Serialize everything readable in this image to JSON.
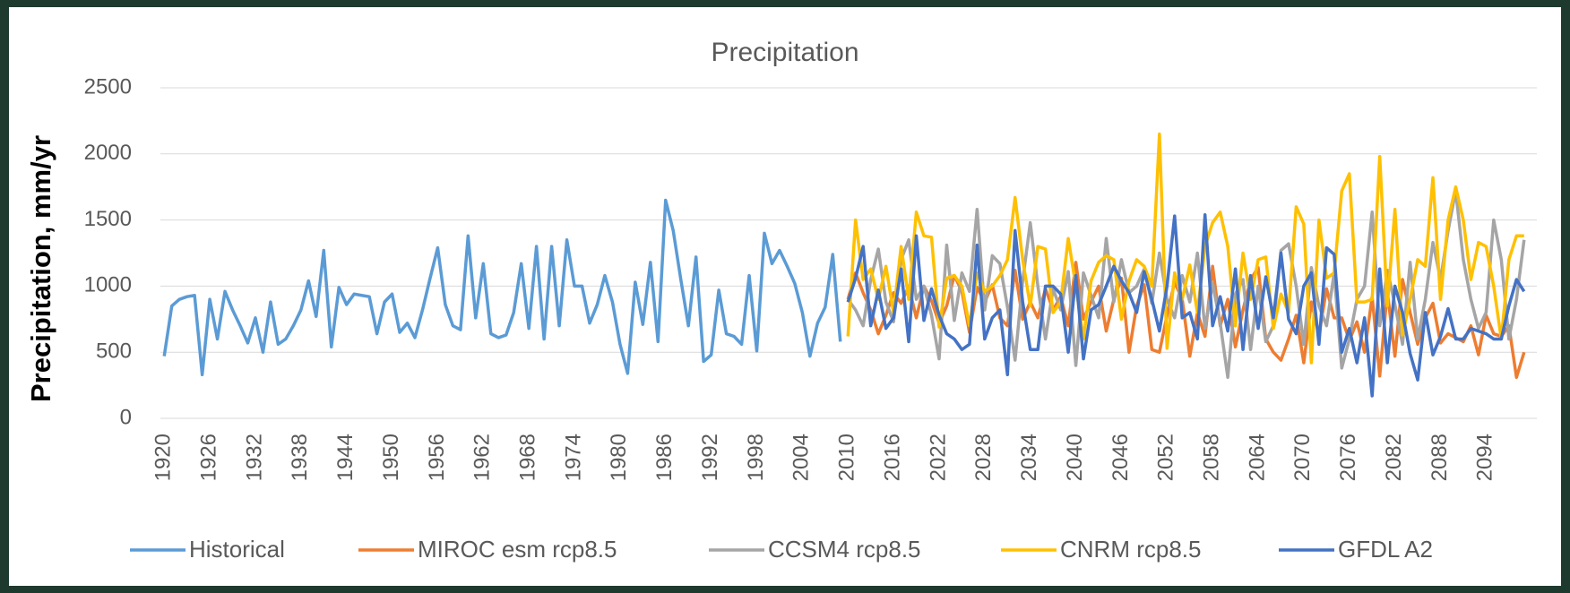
{
  "chart_data": {
    "type": "line",
    "title": "Precipitation",
    "y_label": "Precipitation, mm/yr",
    "categories": [
      "1920",
      null,
      null,
      null,
      null,
      null,
      "1926",
      null,
      null,
      null,
      null,
      null,
      "1932",
      null,
      null,
      null,
      null,
      null,
      "1938",
      null,
      null,
      null,
      null,
      null,
      "1944",
      null,
      null,
      null,
      null,
      null,
      "1950",
      null,
      null,
      null,
      null,
      null,
      "1956",
      null,
      null,
      null,
      null,
      null,
      "1962",
      null,
      null,
      null,
      null,
      null,
      "1968",
      null,
      null,
      null,
      null,
      null,
      "1974",
      null,
      null,
      null,
      null,
      null,
      "1980",
      null,
      null,
      null,
      null,
      null,
      "1986",
      null,
      null,
      null,
      null,
      null,
      "1992",
      null,
      null,
      null,
      null,
      null,
      "1998",
      null,
      null,
      null,
      null,
      null,
      "2004",
      null,
      null,
      null,
      null,
      null,
      "2010",
      null,
      null,
      null,
      null,
      null,
      "2016",
      null,
      null,
      null,
      null,
      null,
      "2022",
      null,
      null,
      null,
      null,
      null,
      "2028",
      null,
      null,
      null,
      null,
      null,
      "2034",
      null,
      null,
      null,
      null,
      null,
      "2040",
      null,
      null,
      null,
      null,
      null,
      "2046",
      null,
      null,
      null,
      null,
      null,
      "2052",
      null,
      null,
      null,
      null,
      null,
      "2058",
      null,
      null,
      null,
      null,
      null,
      "2064",
      null,
      null,
      null,
      null,
      null,
      "2070",
      null,
      null,
      null,
      null,
      null,
      "2076",
      null,
      null,
      null,
      null,
      null,
      "2082",
      null,
      null,
      null,
      null,
      null,
      "2088",
      null,
      null,
      null,
      null,
      null,
      "2094",
      null,
      null,
      null,
      null,
      null
    ],
    "series": [
      {
        "name": "Historical",
        "color": "#5b9bd5",
        "values": [
          470,
          850,
          900,
          920,
          930,
          330,
          900,
          600,
          960,
          820,
          700,
          570,
          760,
          500,
          880,
          560,
          600,
          700,
          820,
          1040,
          770,
          1270,
          540,
          990,
          860,
          940,
          930,
          920,
          640,
          880,
          940,
          650,
          720,
          610,
          820,
          1060,
          1290,
          860,
          700,
          670,
          1380,
          760,
          1170,
          640,
          610,
          630,
          800,
          1170,
          680,
          1300,
          600,
          1300,
          700,
          1350,
          1000,
          1000,
          720,
          860,
          1080,
          880,
          560,
          340,
          1030,
          710,
          1180,
          580,
          1650,
          1420,
          1050,
          700,
          1220,
          430,
          480,
          970,
          640,
          620,
          560,
          1080,
          510,
          1400,
          1170,
          1270,
          1150,
          1020,
          800,
          470,
          720,
          840,
          1240,
          580,
          null,
          null,
          null,
          null,
          null,
          null,
          null,
          null,
          null,
          null,
          null,
          null,
          null,
          null,
          null,
          null,
          null,
          null,
          null,
          null,
          null,
          null,
          null,
          null,
          null,
          null,
          null,
          null,
          null,
          null,
          null,
          null,
          null,
          null,
          null,
          null,
          null,
          null,
          null,
          null,
          null,
          null,
          null,
          null,
          null,
          null,
          null,
          null,
          null,
          null,
          null,
          null,
          null,
          null,
          null,
          null,
          null,
          null,
          null,
          null,
          null,
          null,
          null,
          null,
          null,
          null,
          null,
          null,
          null,
          null,
          null,
          null,
          null,
          null,
          null,
          null,
          null,
          null,
          null,
          null,
          null,
          null,
          null,
          null,
          null,
          null,
          null,
          null,
          null,
          null
        ]
      },
      {
        "name": "MIROC esm rcp8.5",
        "color": "#ed7d31",
        "values": [
          null,
          null,
          null,
          null,
          null,
          null,
          null,
          null,
          null,
          null,
          null,
          null,
          null,
          null,
          null,
          null,
          null,
          null,
          null,
          null,
          null,
          null,
          null,
          null,
          null,
          null,
          null,
          null,
          null,
          null,
          null,
          null,
          null,
          null,
          null,
          null,
          null,
          null,
          null,
          null,
          null,
          null,
          null,
          null,
          null,
          null,
          null,
          null,
          null,
          null,
          null,
          null,
          null,
          null,
          null,
          null,
          null,
          null,
          null,
          null,
          null,
          null,
          null,
          null,
          null,
          null,
          null,
          null,
          null,
          null,
          null,
          null,
          null,
          null,
          null,
          null,
          null,
          null,
          null,
          null,
          null,
          null,
          null,
          null,
          null,
          null,
          null,
          null,
          null,
          null,
          900,
          1100,
          950,
          820,
          640,
          780,
          950,
          870,
          1000,
          760,
          1000,
          890,
          720,
          850,
          1080,
          960,
          650,
          990,
          880,
          1010,
          760,
          700,
          1120,
          750,
          880,
          760,
          980,
          820,
          920,
          700,
          1180,
          750,
          880,
          1000,
          660,
          900,
          1060,
          500,
          850,
          1010,
          520,
          500,
          780,
          1030,
          900,
          470,
          800,
          620,
          1150,
          700,
          900,
          540,
          820,
          1050,
          1140,
          600,
          500,
          440,
          600,
          780,
          420,
          880,
          630,
          980,
          760,
          760,
          590,
          730,
          500,
          920,
          320,
          960,
          470,
          1050,
          800,
          560,
          760,
          870,
          570,
          640,
          610,
          580,
          700,
          480,
          780,
          640,
          620,
          700,
          310,
          500
        ]
      },
      {
        "name": "CCSM4 rcp8.5",
        "color": "#a5a5a5",
        "values": [
          null,
          null,
          null,
          null,
          null,
          null,
          null,
          null,
          null,
          null,
          null,
          null,
          null,
          null,
          null,
          null,
          null,
          null,
          null,
          null,
          null,
          null,
          null,
          null,
          null,
          null,
          null,
          null,
          null,
          null,
          null,
          null,
          null,
          null,
          null,
          null,
          null,
          null,
          null,
          null,
          null,
          null,
          null,
          null,
          null,
          null,
          null,
          null,
          null,
          null,
          null,
          null,
          null,
          null,
          null,
          null,
          null,
          null,
          null,
          null,
          null,
          null,
          null,
          null,
          null,
          null,
          null,
          null,
          null,
          null,
          null,
          null,
          null,
          null,
          null,
          null,
          null,
          null,
          null,
          null,
          null,
          null,
          null,
          null,
          null,
          null,
          null,
          null,
          null,
          null,
          900,
          820,
          700,
          1050,
          1280,
          880,
          730,
          1200,
          1350,
          900,
          1000,
          780,
          450,
          1310,
          740,
          1100,
          960,
          1580,
          820,
          1230,
          1170,
          840,
          440,
          1040,
          1480,
          1000,
          600,
          980,
          820,
          1110,
          400,
          1100,
          930,
          760,
          1360,
          880,
          1200,
          950,
          1000,
          1130,
          870,
          1250,
          900,
          760,
          1080,
          880,
          1250,
          680,
          1020,
          720,
          310,
          940,
          1050,
          520,
          1000,
          580,
          700,
          1270,
          1320,
          1000,
          560,
          1140,
          850,
          700,
          1100,
          380,
          600,
          900,
          1000,
          1560,
          700,
          1120,
          860,
          560,
          1180,
          600,
          900,
          1330,
          1050,
          1420,
          1720,
          1200,
          900,
          680,
          800,
          1500,
          1200,
          600,
          900,
          1350
        ]
      },
      {
        "name": "CNRM rcp8.5",
        "color": "#ffc000",
        "values": [
          null,
          null,
          null,
          null,
          null,
          null,
          null,
          null,
          null,
          null,
          null,
          null,
          null,
          null,
          null,
          null,
          null,
          null,
          null,
          null,
          null,
          null,
          null,
          null,
          null,
          null,
          null,
          null,
          null,
          null,
          null,
          null,
          null,
          null,
          null,
          null,
          null,
          null,
          null,
          null,
          null,
          null,
          null,
          null,
          null,
          null,
          null,
          null,
          null,
          null,
          null,
          null,
          null,
          null,
          null,
          null,
          null,
          null,
          null,
          null,
          null,
          null,
          null,
          null,
          null,
          null,
          null,
          null,
          null,
          null,
          null,
          null,
          null,
          null,
          null,
          null,
          null,
          null,
          null,
          null,
          null,
          null,
          null,
          null,
          null,
          null,
          null,
          null,
          null,
          null,
          620,
          1500,
          1050,
          1130,
          900,
          1150,
          800,
          1300,
          900,
          1560,
          1380,
          1370,
          690,
          1060,
          1080,
          1000,
          700,
          1100,
          960,
          1000,
          1080,
          1200,
          1670,
          1200,
          850,
          1300,
          1280,
          800,
          880,
          1360,
          1000,
          600,
          1040,
          1180,
          1230,
          1200,
          750,
          1040,
          1200,
          1150,
          1000,
          2150,
          530,
          1100,
          900,
          1160,
          800,
          1300,
          1480,
          1560,
          1300,
          700,
          1250,
          900,
          1200,
          1220,
          680,
          940,
          800,
          1600,
          1470,
          420,
          1500,
          1060,
          1100,
          1720,
          1850,
          880,
          880,
          900,
          1980,
          850,
          1580,
          630,
          900,
          1200,
          1150,
          1820,
          900,
          1500,
          1750,
          1500,
          1050,
          1330,
          1300,
          1000,
          600,
          1200,
          1380,
          1380
        ]
      },
      {
        "name": "GFDL A2",
        "color": "#4472c4",
        "values": [
          null,
          null,
          null,
          null,
          null,
          null,
          null,
          null,
          null,
          null,
          null,
          null,
          null,
          null,
          null,
          null,
          null,
          null,
          null,
          null,
          null,
          null,
          null,
          null,
          null,
          null,
          null,
          null,
          null,
          null,
          null,
          null,
          null,
          null,
          null,
          null,
          null,
          null,
          null,
          null,
          null,
          null,
          null,
          null,
          null,
          null,
          null,
          null,
          null,
          null,
          null,
          null,
          null,
          null,
          null,
          null,
          null,
          null,
          null,
          null,
          null,
          null,
          null,
          null,
          null,
          null,
          null,
          null,
          null,
          null,
          null,
          null,
          null,
          null,
          null,
          null,
          null,
          null,
          null,
          null,
          null,
          null,
          null,
          null,
          null,
          null,
          null,
          null,
          null,
          null,
          880,
          1060,
          1300,
          700,
          970,
          680,
          760,
          1130,
          580,
          1380,
          740,
          980,
          780,
          640,
          600,
          520,
          560,
          1310,
          600,
          760,
          820,
          330,
          1420,
          880,
          520,
          520,
          1000,
          1000,
          940,
          500,
          1080,
          450,
          820,
          860,
          1000,
          1150,
          1040,
          950,
          800,
          1110,
          900,
          660,
          1000,
          1530,
          760,
          800,
          600,
          1540,
          700,
          920,
          660,
          1130,
          520,
          1080,
          680,
          1070,
          760,
          1250,
          750,
          640,
          1000,
          1100,
          560,
          1290,
          1240,
          500,
          680,
          420,
          760,
          170,
          1130,
          420,
          1000,
          800,
          490,
          290,
          800,
          480,
          620,
          830,
          600,
          600,
          680,
          660,
          640,
          600,
          600,
          850,
          1050,
          960
        ]
      }
    ],
    "ylim": [
      0,
      2500
    ],
    "yticks": [
      0,
      500,
      1000,
      1500,
      2000,
      2500
    ],
    "grid": true,
    "legend": "bottom"
  }
}
